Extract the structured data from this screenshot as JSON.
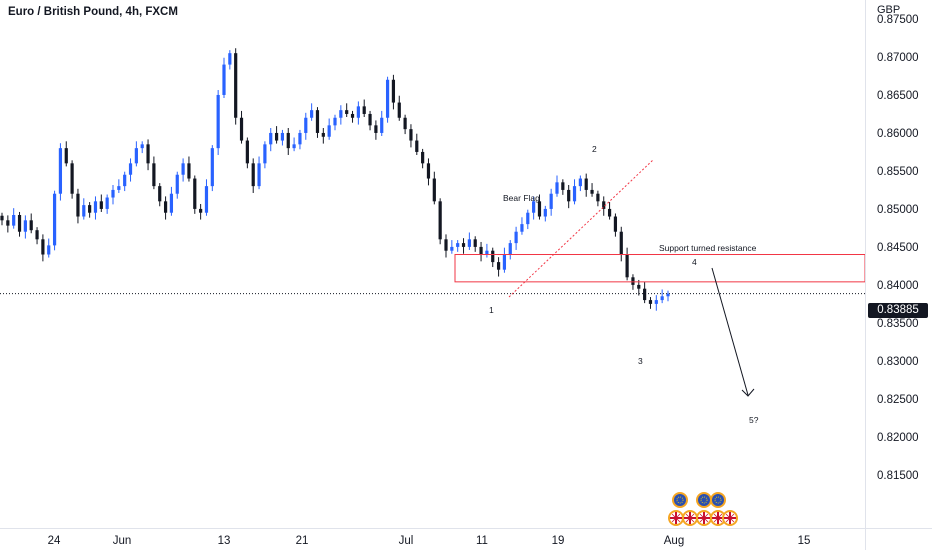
{
  "header": {
    "title": "Euro / British Pound, 4h, FXCM",
    "currency": "GBP"
  },
  "colors": {
    "bull": "#2962ff",
    "bear": "#131722",
    "zone": "#f23645",
    "trend": "#f23645",
    "grid_text": "#131722"
  },
  "chart_data": {
    "type": "candlestick",
    "title": "Euro / British Pound, 4h, FXCM",
    "ylabel": "GBP",
    "ylim": [
      0.808,
      0.8775
    ],
    "y_ticks": [
      "0.87500",
      "0.87000",
      "0.86500",
      "0.86000",
      "0.85500",
      "0.85000",
      "0.84500",
      "0.84000",
      "0.83500",
      "0.83000",
      "0.82500",
      "0.82000",
      "0.81500"
    ],
    "x_ticks": [
      "24",
      "Jun",
      "13",
      "21",
      "Jul",
      "11",
      "19",
      "Aug",
      "15"
    ],
    "x_tick_index": [
      54,
      122,
      224,
      302,
      406,
      482,
      558,
      674,
      804
    ],
    "last_price": "0.83885",
    "last_price_value": 0.83885,
    "closes": [
      0.8485,
      0.8478,
      0.8492,
      0.847,
      0.8485,
      0.8472,
      0.846,
      0.844,
      0.8452,
      0.852,
      0.858,
      0.856,
      0.852,
      0.849,
      0.8505,
      0.8495,
      0.851,
      0.85,
      0.8515,
      0.8525,
      0.853,
      0.8545,
      0.856,
      0.858,
      0.8585,
      0.856,
      0.853,
      0.851,
      0.8495,
      0.852,
      0.8545,
      0.856,
      0.854,
      0.85,
      0.8495,
      0.853,
      0.858,
      0.865,
      0.869,
      0.8705,
      0.862,
      0.859,
      0.856,
      0.853,
      0.856,
      0.8585,
      0.86,
      0.859,
      0.86,
      0.858,
      0.8585,
      0.86,
      0.862,
      0.863,
      0.86,
      0.8595,
      0.861,
      0.862,
      0.863,
      0.8625,
      0.862,
      0.8635,
      0.8625,
      0.861,
      0.86,
      0.862,
      0.867,
      0.864,
      0.862,
      0.8605,
      0.859,
      0.8575,
      0.856,
      0.854,
      0.851,
      0.846,
      0.8445,
      0.845,
      0.8455,
      0.845,
      0.846,
      0.845,
      0.844,
      0.8445,
      0.843,
      0.842,
      0.844,
      0.8455,
      0.847,
      0.848,
      0.8495,
      0.851,
      0.849,
      0.85,
      0.852,
      0.8535,
      0.8525,
      0.851,
      0.853,
      0.854,
      0.8525,
      0.852,
      0.851,
      0.85,
      0.849,
      0.847,
      0.844,
      0.841,
      0.84,
      0.8395,
      0.838,
      0.8375,
      0.838,
      0.8385,
      0.83885
    ],
    "annotations": {
      "bear_flag": "Bear Flag",
      "support_resistance": "Support turned resistance",
      "wave_1": "1",
      "wave_2": "2",
      "wave_3": "3",
      "wave_4": "4",
      "wave_5": "5?"
    },
    "resistance_zone": [
      0.8404,
      0.844
    ]
  }
}
